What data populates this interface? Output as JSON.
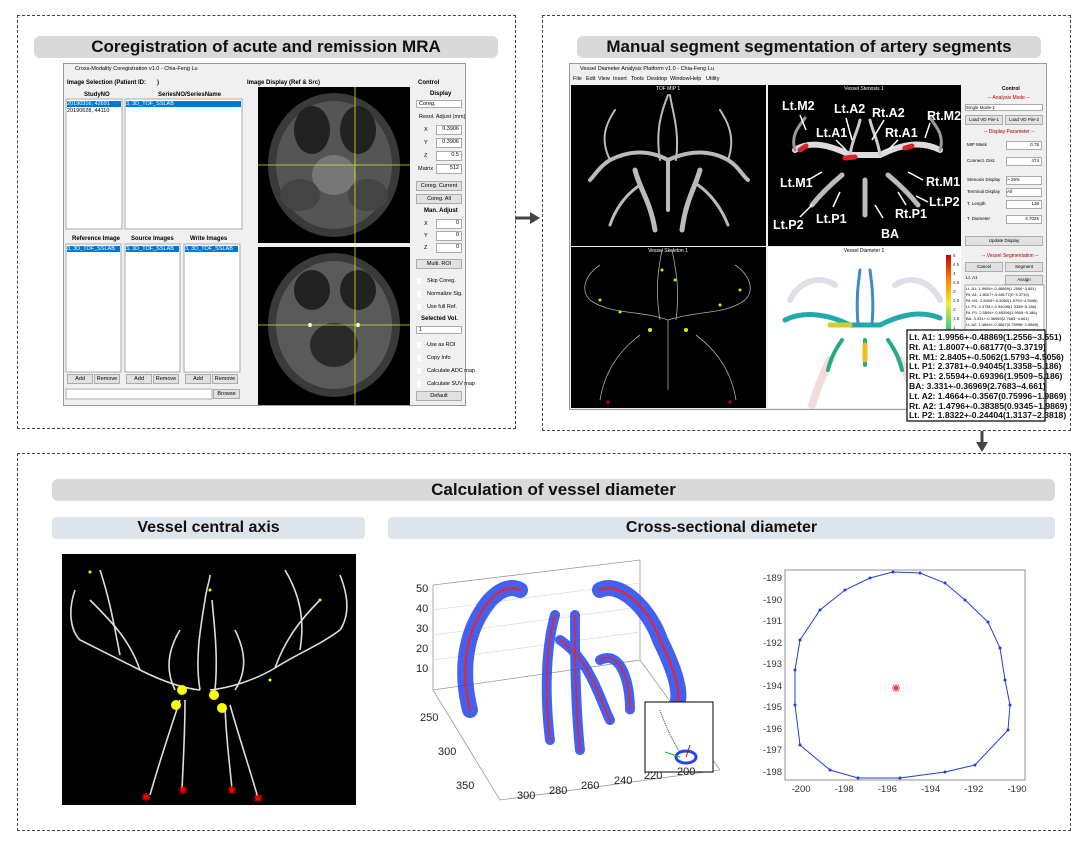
{
  "panel1": {
    "title": "Coregistration of acute and remission MRA",
    "window_title": "Cross-Modality Coregistration v1.0 - Chia-Feng Lu",
    "image_selection": "Image Selection (Patient ID:",
    "image_selection_end": ")",
    "study_header": "StudyNO",
    "series_header": "SeriesNO/SeriesName",
    "studies": [
      "20190316, 42691",
      "20190628, 44110"
    ],
    "series": [
      "3, 3D_TOF_SSLAB"
    ],
    "lists": [
      {
        "header": "Reference Image",
        "item": "3, 3D_TOF_SSLAB",
        "add": "Add",
        "remove": "Remove"
      },
      {
        "header": "Source Images",
        "item": "3, 3D_TOF_SSLAB",
        "add": "Add",
        "remove": "Remove"
      },
      {
        "header": "Write Images",
        "item": "3, 3D_TOF_SSLAB",
        "add": "Add",
        "remove": "Remove"
      }
    ],
    "browse": "Browse",
    "image_display": "Image Display (Ref & Src)",
    "control": "Control",
    "display": "Display",
    "display_mode": "Coreg.",
    "resol_adjust": "Resol. Adjust (mm)",
    "resol": [
      {
        "label": "X",
        "value": 0.3906
      },
      {
        "label": "Y",
        "value": 0.3906
      },
      {
        "label": "Z",
        "value": 0.5
      },
      {
        "label": "Matrix",
        "value": 512
      }
    ],
    "coreg_current": "Coreg. Current",
    "coreg_all": "Coreg. All",
    "man_adjust": "Man. Adjust",
    "man": [
      {
        "label": "X",
        "value": 0
      },
      {
        "label": "Y",
        "value": 0
      },
      {
        "label": "Z",
        "value": 0
      }
    ],
    "multi_roi": "Multi. ROI",
    "checks1": [
      "Skip Coreg.",
      "Normalize Sig.",
      "Use full Ref."
    ],
    "selected_vol": "Selected Vol.",
    "selected_vol_value": 1,
    "checks2": [
      "Use as ROI",
      "Copy Info",
      "Calculate ADC map",
      "Calculate SUV map"
    ],
    "default": "Default"
  },
  "panel2": {
    "title": "Manual segment segmentation of artery segments",
    "window_title": "Vessel Diameter Analysis Platform v1.0 - Chia-Feng Lu",
    "menu": [
      "File",
      "Edit",
      "View",
      "Insert",
      "Tools",
      "Desktop",
      "Window",
      "Help",
      "Utility"
    ],
    "views": [
      "TOF MIP 1",
      "Vessel Stenosis 1",
      "Vessel Skeleton 1",
      "Vessel Diameter 1"
    ],
    "labels": [
      "Lt.M2",
      "Lt.A2",
      "Rt.A2",
      "Rt.M2",
      "Lt.A1",
      "Rt.A1",
      "Lt.M1",
      "Rt.M1",
      "Lt.P2",
      "Lt.P1",
      "BA",
      "Rt.P1",
      "Lt.P2"
    ],
    "colorbar": [
      "5",
      "4.5",
      "4",
      "3.5",
      "3",
      "2.5",
      "2",
      "1.5",
      "1"
    ],
    "control": "Control",
    "analysis_mode": "-- Analysis Mode --",
    "mode": "Single Mode-1",
    "load1": "Load VD File-1",
    "load2": "Load VD File-2",
    "display_parameter": "-- Display Parameter --",
    "params": [
      {
        "label": "MIP Mask",
        "value": 0.75
      },
      {
        "label": "Connect. Dist.",
        "value": 474
      },
      {
        "label": "Stenosis Display",
        "value": "> 29%"
      },
      {
        "label": "Terminal Display",
        "value": "All"
      },
      {
        "label": "T. Length",
        "value": 136
      },
      {
        "label": "T. Diameter",
        "value": 4.7025
      }
    ],
    "update_display": "Update Display",
    "vessel_segmentation": "-- Vessel Segmentation --",
    "cancel": "Cancel",
    "segment": "Segment",
    "selected_segment": "Lt. A1",
    "assign": "Assign",
    "diameters": [
      "Lt. A1: 1.9956+-0.48869(1.2556~3.551)",
      "Rt. A1: 1.8007+-0.68177(0~3.3719)",
      "Rt. M1: 2.8405+-0.5062(1.5793~4.5056)",
      "Lt. P1: 2.3781+-0.94045(1.3358~5.186)",
      "Rt. P1: 2.5594+-0.69396(1.9509~5.186)",
      "BA: 3.331+-0.36969(2.7683~4.661)",
      "Lt. A2: 1.4664+-0.3567(0.75996~1.9869)",
      "Rt. A2: 1.4796+-0.38385(0.9345~1.9869)",
      "Lt. P2: 1.8322+-0.24404(1.3137~2.3818)"
    ]
  },
  "panel3": {
    "title": "Calculation of vessel diameter",
    "axis_title": "Vessel central axis",
    "cross_title": "Cross-sectional diameter",
    "plot3d": {
      "zticks": [
        50,
        40,
        30,
        20,
        10
      ],
      "yticks": [
        250,
        300,
        350
      ],
      "xticks": [
        300,
        280,
        260,
        240,
        220,
        200
      ]
    },
    "plot2d": {
      "xticks": [
        -200,
        -198,
        -196,
        -194,
        -192,
        -190
      ],
      "yticks": [
        -189,
        -190,
        -191,
        -192,
        -193,
        -194,
        -195,
        -196,
        -197,
        -198
      ]
    }
  }
}
